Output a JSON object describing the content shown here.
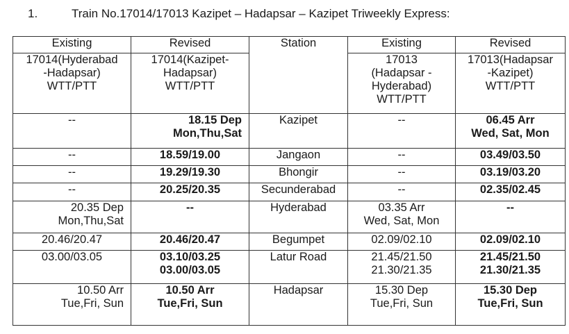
{
  "title": {
    "number": "1.",
    "text": "Train No.17014/17013 Kazipet – Hadapsar – Kazipet Triweekly Express:"
  },
  "header": {
    "top": [
      "Existing",
      "Revised",
      "Station",
      "Existing",
      "Revised"
    ],
    "sub": [
      "17014(Hyderabad\n-Hadapsar)\nWTT/PTT",
      "17014(Kazipet-\nHadapsar)\nWTT/PTT",
      "17013\n(Hadapsar -\nHyderabad)\nWTT/PTT",
      "17013(Hadapsar\n-Kazipet)\nWTT/PTT"
    ]
  },
  "rows": [
    {
      "c0": "--",
      "c1": "18.15 Dep\nMon,Thu,Sat",
      "station": "Kazipet",
      "c3": "--",
      "c4": "06.45 Arr\nWed, Sat, Mon"
    },
    {
      "c0": "--",
      "c1": "18.59/19.00",
      "station": "Jangaon",
      "c3": "--",
      "c4": "03.49/03.50"
    },
    {
      "c0": "--",
      "c1": "19.29/19.30",
      "station": "Bhongir",
      "c3": "--",
      "c4": "03.19/03.20"
    },
    {
      "c0": "--",
      "c1": "20.25/20.35",
      "station": "Secunderabad",
      "c3": "--",
      "c4": "02.35/02.45"
    },
    {
      "c0": "20.35 Dep\nMon,Thu,Sat",
      "c1": "--",
      "station": "Hyderabad",
      "c3": "03.35 Arr\nWed, Sat, Mon",
      "c4": "--"
    },
    {
      "c0": "20.46/20.47",
      "c1": "20.46/20.47",
      "station": "Begumpet",
      "c3": "02.09/02.10",
      "c4": "02.09/02.10"
    },
    {
      "c0": "03.00/03.05",
      "c1": "03.10/03.25\n03.00/03.05",
      "station": "Latur Road",
      "c3": "21.45/21.50\n21.30/21.35",
      "c4": "21.45/21.50\n21.30/21.35"
    },
    {
      "c0": "10.50 Arr\nTue,Fri, Sun",
      "c1": "10.50 Arr\nTue,Fri, Sun",
      "station": "Hadapsar",
      "c3": "15.30 Dep\nTue,Fri, Sun",
      "c4": "15.30  Dep\nTue,Fri, Sun"
    }
  ]
}
